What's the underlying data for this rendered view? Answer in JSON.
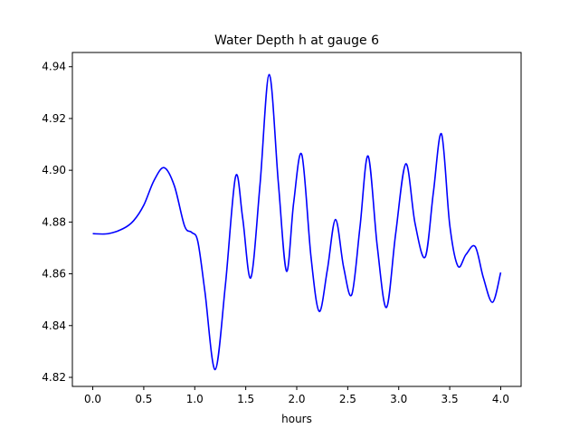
{
  "chart_data": {
    "type": "line",
    "title": "Water Depth h at gauge 6",
    "xlabel": "hours",
    "ylabel": "",
    "xlim": [
      -0.2,
      4.2
    ],
    "ylim": [
      4.8165,
      4.9455
    ],
    "grid": false,
    "legend": "none",
    "xticks": [
      0.0,
      0.5,
      1.0,
      1.5,
      2.0,
      2.5,
      3.0,
      3.5,
      4.0
    ],
    "xtick_labels": [
      "0.0",
      "0.5",
      "1.0",
      "1.5",
      "2.0",
      "2.5",
      "3.0",
      "3.5",
      "4.0"
    ],
    "yticks": [
      4.82,
      4.84,
      4.86,
      4.88,
      4.9,
      4.92,
      4.94
    ],
    "ytick_labels": [
      "4.82",
      "4.84",
      "4.86",
      "4.88",
      "4.90",
      "4.92",
      "4.94"
    ],
    "series": [
      {
        "color": "#0000ff",
        "x": [
          0.0,
          0.15,
          0.3,
          0.4,
          0.5,
          0.6,
          0.7,
          0.8,
          0.9,
          0.97,
          1.03,
          1.1,
          1.2,
          1.3,
          1.4,
          1.47,
          1.55,
          1.64,
          1.73,
          1.82,
          1.9,
          1.97,
          2.05,
          2.14,
          2.22,
          2.3,
          2.38,
          2.46,
          2.54,
          2.62,
          2.7,
          2.79,
          2.88,
          2.97,
          3.07,
          3.16,
          3.26,
          3.34,
          3.42,
          3.5,
          3.58,
          3.66,
          3.75,
          3.83,
          3.92,
          4.0
        ],
        "y": [
          4.8755,
          4.8755,
          4.8775,
          4.8805,
          4.8865,
          4.896,
          4.901,
          4.894,
          4.8785,
          4.876,
          4.8725,
          4.853,
          4.823,
          4.8555,
          4.8975,
          4.8815,
          4.8585,
          4.8945,
          4.937,
          4.895,
          4.861,
          4.8875,
          4.906,
          4.8665,
          4.8455,
          4.8615,
          4.881,
          4.8625,
          4.852,
          4.878,
          4.9055,
          4.8705,
          4.847,
          4.8755,
          4.9025,
          4.8795,
          4.8665,
          4.8915,
          4.914,
          4.879,
          4.863,
          4.8675,
          4.8705,
          4.8585,
          4.849,
          4.8605
        ]
      }
    ]
  }
}
